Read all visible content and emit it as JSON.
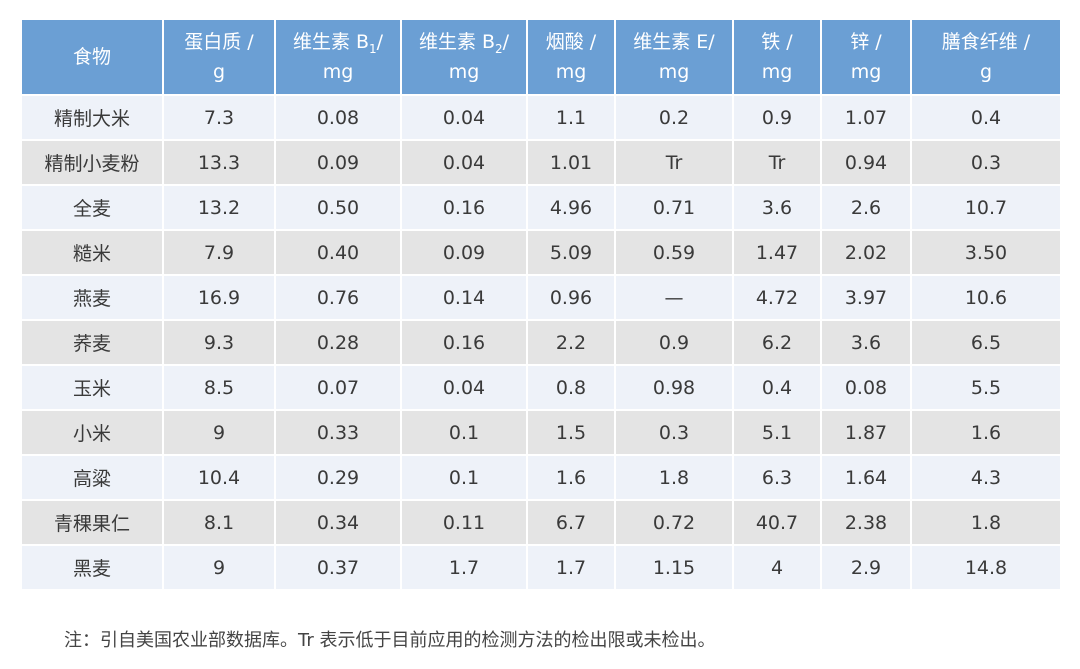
{
  "table": {
    "headers": [
      {
        "main": "食物",
        "sub": "",
        "tail": "",
        "unit": ""
      },
      {
        "main": "蛋白质 /",
        "sub": "",
        "tail": "",
        "unit": "g"
      },
      {
        "main": "维生素 B",
        "sub": "1",
        "tail": "/",
        "unit": "mg"
      },
      {
        "main": "维生素 B",
        "sub": "2",
        "tail": "/",
        "unit": "mg"
      },
      {
        "main": "烟酸 /",
        "sub": "",
        "tail": "",
        "unit": "mg"
      },
      {
        "main": "维生素 E/",
        "sub": "",
        "tail": "",
        "unit": "mg"
      },
      {
        "main": "铁 /",
        "sub": "",
        "tail": "",
        "unit": "mg"
      },
      {
        "main": "锌 /",
        "sub": "",
        "tail": "",
        "unit": "mg"
      },
      {
        "main": "膳食纤维 /",
        "sub": "",
        "tail": "",
        "unit": "g"
      }
    ],
    "rows": [
      [
        "精制大米",
        "7.3",
        "0.08",
        "0.04",
        "1.1",
        "0.2",
        "0.9",
        "1.07",
        "0.4"
      ],
      [
        "精制小麦粉",
        "13.3",
        "0.09",
        "0.04",
        "1.01",
        "Tr",
        "Tr",
        "0.94",
        "0.3"
      ],
      [
        "全麦",
        "13.2",
        "0.50",
        "0.16",
        "4.96",
        "0.71",
        "3.6",
        "2.6",
        "10.7"
      ],
      [
        "糙米",
        "7.9",
        "0.40",
        "0.09",
        "5.09",
        "0.59",
        "1.47",
        "2.02",
        "3.50"
      ],
      [
        "燕麦",
        "16.9",
        "0.76",
        "0.14",
        "0.96",
        "—",
        "4.72",
        "3.97",
        "10.6"
      ],
      [
        "荞麦",
        "9.3",
        "0.28",
        "0.16",
        "2.2",
        "0.9",
        "6.2",
        "3.6",
        "6.5"
      ],
      [
        "玉米",
        "8.5",
        "0.07",
        "0.04",
        "0.8",
        "0.98",
        "0.4",
        "0.08",
        "5.5"
      ],
      [
        "小米",
        "9",
        "0.33",
        "0.1",
        "1.5",
        "0.3",
        "5.1",
        "1.87",
        "1.6"
      ],
      [
        "高粱",
        "10.4",
        "0.29",
        "0.1",
        "1.6",
        "1.8",
        "6.3",
        "1.64",
        "4.3"
      ],
      [
        "青稞果仁",
        "8.1",
        "0.34",
        "0.11",
        "6.7",
        "0.72",
        "40.7",
        "2.38",
        "1.8"
      ],
      [
        "黑麦",
        "9",
        "0.37",
        "1.7",
        "1.7",
        "1.15",
        "4",
        "2.9",
        "14.8"
      ]
    ]
  },
  "footnote": "注：引自美国农业部数据库。Tr 表示低于目前应用的检测方法的检出限或未检出。",
  "colors": {
    "header_bg": "#6b9fd4",
    "header_text": "#ffffff",
    "row_odd_bg": "#eef2f9",
    "row_even_bg": "#e4e4e4",
    "body_text": "#3a3a3a"
  }
}
